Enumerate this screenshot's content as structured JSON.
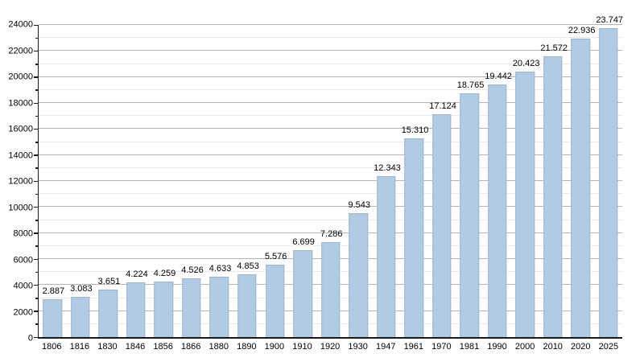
{
  "chart_data": {
    "type": "bar",
    "title": "",
    "xlabel": "",
    "ylabel": "",
    "categories": [
      "1806",
      "1816",
      "1830",
      "1846",
      "1856",
      "1866",
      "1880",
      "1890",
      "1900",
      "1910",
      "1920",
      "1930",
      "1947",
      "1961",
      "1970",
      "1981",
      "1990",
      "2000",
      "2010",
      "2020",
      "2025"
    ],
    "values": [
      2887,
      3083,
      3651,
      4224,
      4259,
      4526,
      4633,
      4853,
      5576,
      6699,
      7286,
      9543,
      12343,
      15310,
      17124,
      18765,
      19442,
      20423,
      21572,
      22936,
      23747
    ],
    "value_labels": [
      "2.887",
      "3.083",
      "3.651",
      "4.224",
      "4.259",
      "4.526",
      "4.633",
      "4.853",
      "5.576",
      "6.699",
      "7.286",
      "9.543",
      "12.343",
      "15.310",
      "17.124",
      "18.765",
      "19.442",
      "20.423",
      "21.572",
      "22.936",
      "23.747"
    ],
    "ylim": [
      0,
      24000
    ],
    "y_major_step": 2000,
    "y_minor_step": 1000,
    "y_tick_labels": [
      "0",
      "2000",
      "4000",
      "6000",
      "8000",
      "10000",
      "12000",
      "14000",
      "16000",
      "18000",
      "20000",
      "22000",
      "24000"
    ],
    "grid": "major-and-minor-horizontal",
    "legend": "none",
    "colors": {
      "background": "#ffffff",
      "bar_fill": "#b2cbe4",
      "bar_border": "#9fb4c9",
      "grid_major": "#b4b4b4",
      "grid_minor": "#e9e9e9",
      "axis": "#1a1a1a",
      "text": "#000000"
    }
  }
}
